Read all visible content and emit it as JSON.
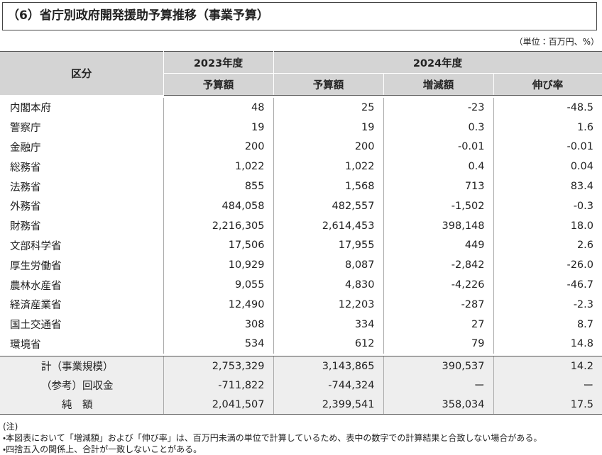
{
  "header": {
    "title": "（6）省庁別政府開発援助予算推移（事業予算）",
    "unit": "（単位：百万円、%）"
  },
  "table": {
    "category_header": "区分",
    "year_headers": [
      "2023年度",
      "2024年度"
    ],
    "sub_headers": [
      "予算額",
      "予算額",
      "増減額",
      "伸び率"
    ],
    "rows": [
      [
        "内閣本府",
        "48",
        "25",
        "-23",
        "-48.5"
      ],
      [
        "警察庁",
        "19",
        "19",
        "0.3",
        "1.6"
      ],
      [
        "金融庁",
        "200",
        "200",
        "-0.01",
        "-0.01"
      ],
      [
        "総務省",
        "1,022",
        "1,022",
        "0.4",
        "0.04"
      ],
      [
        "法務省",
        "855",
        "1,568",
        "713",
        "83.4"
      ],
      [
        "外務省",
        "484,058",
        "482,557",
        "-1,502",
        "-0.3"
      ],
      [
        "財務省",
        "2,216,305",
        "2,614,453",
        "398,148",
        "18.0"
      ],
      [
        "文部科学省",
        "17,506",
        "17,955",
        "449",
        "2.6"
      ],
      [
        "厚生労働省",
        "10,929",
        "8,087",
        "-2,842",
        "-26.0"
      ],
      [
        "農林水産省",
        "9,055",
        "4,830",
        "-4,226",
        "-46.7"
      ],
      [
        "経済産業省",
        "12,490",
        "12,203",
        "-287",
        "-2.3"
      ],
      [
        "国土交通省",
        "308",
        "334",
        "27",
        "8.7"
      ],
      [
        "環境省",
        "534",
        "612",
        "79",
        "14.8"
      ]
    ],
    "total_rows": [
      [
        "計（事業規模）",
        "2,753,329",
        "3,143,865",
        "390,537",
        "14.2"
      ],
      [
        "（参考）回収金",
        "-711,822",
        "-744,324",
        "ー",
        "ー"
      ],
      [
        "純　額",
        "2,041,507",
        "2,399,541",
        "358,034",
        "17.5"
      ]
    ]
  },
  "notes": {
    "heading": "(注)",
    "items": [
      "・本図表において「増減額」および「伸び率」は、百万円未満の単位で計算しているため、表中の数字での計算結果と合致しない場合がある。",
      "・四捨五入の関係上、合計が一致しないことがある。"
    ]
  }
}
